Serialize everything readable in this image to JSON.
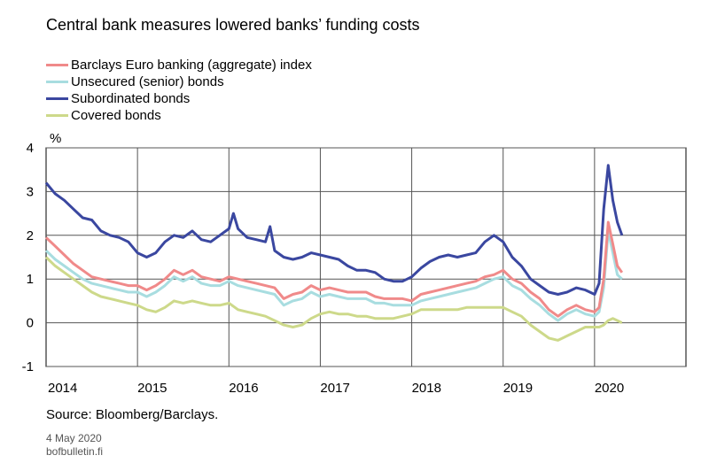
{
  "title": "Central bank measures lowered banks’ funding costs",
  "source": "Source: Bloomberg/Barclays.",
  "date": "4 May 2020",
  "site": "bofbulletin.fi",
  "chart_data": {
    "type": "line",
    "title": "Central bank measures lowered banks’ funding costs",
    "ylabel": "%",
    "xlabel": "",
    "ylim": [
      -1,
      4
    ],
    "yticks": [
      -1,
      0,
      1,
      2,
      3,
      4
    ],
    "xlim": [
      2014.0,
      2021.0
    ],
    "xticks": [
      "2014",
      "2015",
      "2016",
      "2017",
      "2018",
      "2019",
      "2020"
    ],
    "grid": true,
    "legend_position": "top-left",
    "series": [
      {
        "name": "Barclays Euro banking (aggregate) index",
        "color": "#f08a8a",
        "x": [
          2014.0,
          2014.1,
          2014.2,
          2014.3,
          2014.4,
          2014.5,
          2014.6,
          2014.7,
          2014.8,
          2014.9,
          2015.0,
          2015.1,
          2015.2,
          2015.3,
          2015.4,
          2015.5,
          2015.6,
          2015.7,
          2015.8,
          2015.9,
          2016.0,
          2016.1,
          2016.2,
          2016.3,
          2016.4,
          2016.5,
          2016.6,
          2016.7,
          2016.8,
          2016.9,
          2017.0,
          2017.1,
          2017.2,
          2017.3,
          2017.4,
          2017.5,
          2017.6,
          2017.7,
          2017.8,
          2017.9,
          2018.0,
          2018.1,
          2018.2,
          2018.3,
          2018.4,
          2018.5,
          2018.6,
          2018.7,
          2018.8,
          2018.9,
          2019.0,
          2019.1,
          2019.2,
          2019.3,
          2019.4,
          2019.5,
          2019.6,
          2019.7,
          2019.8,
          2019.9,
          2020.0,
          2020.05,
          2020.1,
          2020.15,
          2020.2,
          2020.25,
          2020.3
        ],
        "values": [
          1.95,
          1.75,
          1.55,
          1.35,
          1.2,
          1.05,
          1.0,
          0.95,
          0.9,
          0.85,
          0.85,
          0.75,
          0.85,
          1.0,
          1.2,
          1.1,
          1.2,
          1.05,
          1.0,
          0.95,
          1.05,
          1.0,
          0.95,
          0.9,
          0.85,
          0.8,
          0.55,
          0.65,
          0.7,
          0.85,
          0.75,
          0.8,
          0.75,
          0.7,
          0.7,
          0.7,
          0.6,
          0.55,
          0.55,
          0.55,
          0.5,
          0.65,
          0.7,
          0.75,
          0.8,
          0.85,
          0.9,
          0.95,
          1.05,
          1.1,
          1.2,
          1.0,
          0.9,
          0.7,
          0.55,
          0.3,
          0.15,
          0.3,
          0.4,
          0.3,
          0.25,
          0.35,
          1.0,
          2.3,
          1.8,
          1.3,
          1.15
        ]
      },
      {
        "name": "Unsecured (senior) bonds",
        "color": "#a8dde0",
        "x": [
          2014.0,
          2014.1,
          2014.2,
          2014.3,
          2014.4,
          2014.5,
          2014.6,
          2014.7,
          2014.8,
          2014.9,
          2015.0,
          2015.1,
          2015.2,
          2015.3,
          2015.4,
          2015.5,
          2015.6,
          2015.7,
          2015.8,
          2015.9,
          2016.0,
          2016.1,
          2016.2,
          2016.3,
          2016.4,
          2016.5,
          2016.6,
          2016.7,
          2016.8,
          2016.9,
          2017.0,
          2017.1,
          2017.2,
          2017.3,
          2017.4,
          2017.5,
          2017.6,
          2017.7,
          2017.8,
          2017.9,
          2018.0,
          2018.1,
          2018.2,
          2018.3,
          2018.4,
          2018.5,
          2018.6,
          2018.7,
          2018.8,
          2018.9,
          2019.0,
          2019.1,
          2019.2,
          2019.3,
          2019.4,
          2019.5,
          2019.6,
          2019.7,
          2019.8,
          2019.9,
          2020.0,
          2020.05,
          2020.1,
          2020.15,
          2020.2,
          2020.25,
          2020.3
        ],
        "values": [
          1.65,
          1.45,
          1.3,
          1.15,
          1.0,
          0.9,
          0.85,
          0.8,
          0.75,
          0.7,
          0.7,
          0.6,
          0.7,
          0.85,
          1.05,
          0.95,
          1.05,
          0.9,
          0.85,
          0.85,
          0.95,
          0.85,
          0.8,
          0.75,
          0.7,
          0.65,
          0.4,
          0.5,
          0.55,
          0.7,
          0.6,
          0.65,
          0.6,
          0.55,
          0.55,
          0.55,
          0.45,
          0.45,
          0.4,
          0.4,
          0.4,
          0.5,
          0.55,
          0.6,
          0.65,
          0.7,
          0.75,
          0.8,
          0.9,
          1.0,
          1.05,
          0.85,
          0.75,
          0.55,
          0.4,
          0.2,
          0.05,
          0.2,
          0.3,
          0.2,
          0.15,
          0.25,
          0.8,
          2.1,
          1.6,
          1.1,
          1.0
        ]
      },
      {
        "name": "Subordinated bonds",
        "color": "#3a47a0",
        "x": [
          2014.0,
          2014.1,
          2014.2,
          2014.3,
          2014.4,
          2014.5,
          2014.6,
          2014.7,
          2014.8,
          2014.9,
          2015.0,
          2015.1,
          2015.2,
          2015.3,
          2015.4,
          2015.5,
          2015.6,
          2015.7,
          2015.8,
          2015.9,
          2016.0,
          2016.05,
          2016.1,
          2016.2,
          2016.3,
          2016.4,
          2016.45,
          2016.5,
          2016.6,
          2016.7,
          2016.8,
          2016.9,
          2017.0,
          2017.1,
          2017.2,
          2017.3,
          2017.4,
          2017.5,
          2017.6,
          2017.7,
          2017.8,
          2017.9,
          2018.0,
          2018.1,
          2018.2,
          2018.3,
          2018.4,
          2018.5,
          2018.6,
          2018.7,
          2018.8,
          2018.9,
          2019.0,
          2019.1,
          2019.2,
          2019.3,
          2019.4,
          2019.5,
          2019.6,
          2019.7,
          2019.8,
          2019.9,
          2020.0,
          2020.05,
          2020.1,
          2020.15,
          2020.2,
          2020.25,
          2020.3
        ],
        "values": [
          3.2,
          2.95,
          2.8,
          2.6,
          2.4,
          2.35,
          2.1,
          2.0,
          1.95,
          1.85,
          1.6,
          1.5,
          1.6,
          1.85,
          2.0,
          1.95,
          2.1,
          1.9,
          1.85,
          2.0,
          2.15,
          2.5,
          2.15,
          1.95,
          1.9,
          1.85,
          2.2,
          1.65,
          1.5,
          1.45,
          1.5,
          1.6,
          1.55,
          1.5,
          1.45,
          1.3,
          1.2,
          1.2,
          1.15,
          1.0,
          0.95,
          0.95,
          1.05,
          1.25,
          1.4,
          1.5,
          1.55,
          1.5,
          1.55,
          1.6,
          1.85,
          2.0,
          1.85,
          1.5,
          1.3,
          1.0,
          0.85,
          0.7,
          0.65,
          0.7,
          0.8,
          0.75,
          0.65,
          0.9,
          2.6,
          3.6,
          2.8,
          2.3,
          2.0
        ]
      },
      {
        "name": "Covered bonds",
        "color": "#cdd98a",
        "x": [
          2014.0,
          2014.1,
          2014.2,
          2014.3,
          2014.4,
          2014.5,
          2014.6,
          2014.7,
          2014.8,
          2014.9,
          2015.0,
          2015.1,
          2015.2,
          2015.3,
          2015.4,
          2015.5,
          2015.6,
          2015.7,
          2015.8,
          2015.9,
          2016.0,
          2016.1,
          2016.2,
          2016.3,
          2016.4,
          2016.5,
          2016.6,
          2016.7,
          2016.8,
          2016.9,
          2017.0,
          2017.1,
          2017.2,
          2017.3,
          2017.4,
          2017.5,
          2017.6,
          2017.7,
          2017.8,
          2017.9,
          2018.0,
          2018.1,
          2018.2,
          2018.3,
          2018.4,
          2018.5,
          2018.6,
          2018.7,
          2018.8,
          2018.9,
          2019.0,
          2019.1,
          2019.2,
          2019.3,
          2019.4,
          2019.5,
          2019.6,
          2019.7,
          2019.8,
          2019.9,
          2020.0,
          2020.05,
          2020.1,
          2020.15,
          2020.2,
          2020.25,
          2020.3
        ],
        "values": [
          1.5,
          1.3,
          1.15,
          1.0,
          0.85,
          0.7,
          0.6,
          0.55,
          0.5,
          0.45,
          0.4,
          0.3,
          0.25,
          0.35,
          0.5,
          0.45,
          0.5,
          0.45,
          0.4,
          0.4,
          0.45,
          0.3,
          0.25,
          0.2,
          0.15,
          0.05,
          -0.05,
          -0.1,
          -0.05,
          0.1,
          0.2,
          0.25,
          0.2,
          0.2,
          0.15,
          0.15,
          0.1,
          0.1,
          0.1,
          0.15,
          0.2,
          0.3,
          0.3,
          0.3,
          0.3,
          0.3,
          0.35,
          0.35,
          0.35,
          0.35,
          0.35,
          0.25,
          0.15,
          -0.05,
          -0.2,
          -0.35,
          -0.4,
          -0.3,
          -0.2,
          -0.1,
          -0.1,
          -0.1,
          -0.05,
          0.05,
          0.1,
          0.05,
          0.0
        ]
      }
    ]
  }
}
